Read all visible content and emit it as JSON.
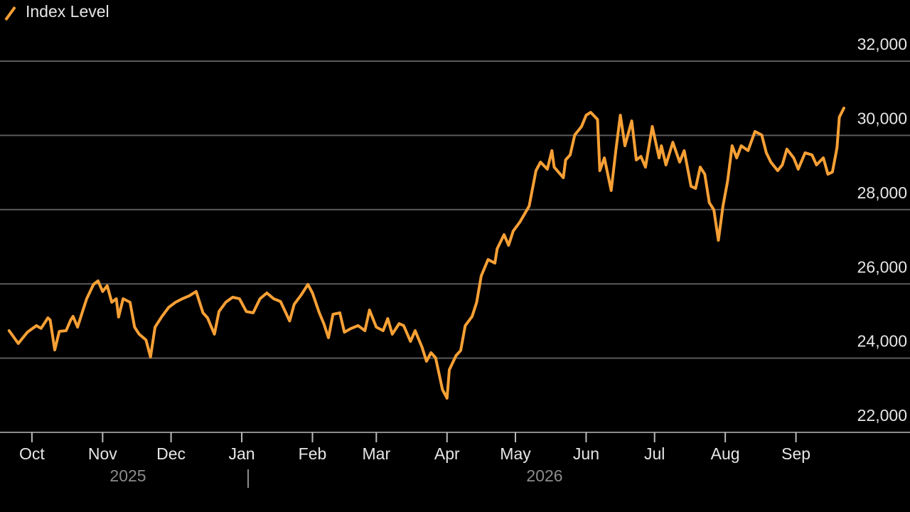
{
  "chart_data": {
    "type": "line",
    "series": [
      {
        "name": "Index Level",
        "color": "#f7a035",
        "values": [
          24740,
          24395,
          24700,
          24875,
          24800,
          25085,
          25025,
          24220,
          24720,
          24740,
          25025,
          25125,
          24835,
          25220,
          25600,
          25985,
          26080,
          25795,
          25950,
          25505,
          25600,
          25105,
          25600,
          25505,
          24835,
          24645,
          24490,
          24030,
          24835,
          25125,
          25370,
          25505,
          25600,
          25680,
          25795,
          25220,
          25085,
          24645,
          25255,
          25505,
          25640,
          25600,
          25255,
          25220,
          25600,
          25755,
          25600,
          25525,
          25000,
          25450,
          25700,
          25985,
          25755,
          25220,
          24930,
          24550,
          25180,
          25220,
          24700,
          24800,
          24875,
          24740,
          25295,
          24835,
          24740,
          25065,
          24645,
          24930,
          24875,
          24450,
          24740,
          24300,
          23915,
          24145,
          24010,
          23150,
          22920,
          23685,
          24070,
          24205,
          24875,
          25125,
          25505,
          26215,
          26655,
          26560,
          26945,
          27325,
          27040,
          27420,
          27670,
          28095,
          29050,
          29280,
          29090,
          29590,
          29145,
          28860,
          29340,
          29475,
          30010,
          30240,
          30545,
          30620,
          30430,
          29050,
          29395,
          28515,
          29590,
          30545,
          29720,
          30390,
          29340,
          29435,
          29145,
          30240,
          29395,
          29720,
          29205,
          29815,
          29280,
          29590,
          28630,
          28570,
          29145,
          28955,
          28190,
          27995,
          27175,
          28095,
          28765,
          29720,
          29395,
          29720,
          29590,
          30105,
          30010,
          29530,
          29280,
          29050,
          29205,
          29630,
          29395,
          29090,
          29530,
          29475,
          29205,
          29395,
          28955,
          29015,
          29665,
          30490,
          30735
        ]
      }
    ],
    "x": [
      -10,
      -6,
      -2,
      2,
      4,
      7,
      8,
      10,
      12,
      15,
      17,
      18,
      20,
      22,
      24,
      27,
      29,
      31,
      33,
      35,
      37,
      38,
      40,
      43,
      45,
      47,
      50,
      52,
      54,
      57,
      60,
      63,
      66,
      69,
      72,
      75,
      77,
      80,
      82,
      85,
      88,
      91,
      94,
      97,
      100,
      103,
      106,
      109,
      113,
      115,
      118,
      121,
      123,
      126,
      128,
      130,
      132,
      135,
      137,
      140,
      143,
      146,
      148,
      151,
      154,
      156,
      158,
      161,
      163,
      166,
      168,
      171,
      173,
      175,
      177,
      180,
      182,
      183,
      186,
      188,
      190,
      193,
      195,
      197,
      200,
      203,
      204,
      207,
      209,
      211,
      214,
      218,
      221,
      223,
      226,
      228,
      229,
      233,
      234,
      236,
      238,
      241,
      243,
      245,
      248,
      249,
      251,
      254,
      256,
      258,
      260,
      263,
      265,
      267,
      269,
      272,
      275,
      276,
      278,
      281,
      284,
      286,
      289,
      291,
      293,
      295,
      297,
      299,
      301,
      303,
      305,
      307,
      309,
      311,
      314,
      317,
      320,
      322,
      324,
      327,
      329,
      331,
      334,
      336,
      339,
      342,
      344,
      347,
      349,
      351,
      353,
      354,
      356
    ],
    "xlim": [
      -14,
      385
    ],
    "xticks": [
      {
        "value": 0,
        "label": "Oct"
      },
      {
        "value": 31,
        "label": "Nov"
      },
      {
        "value": 61,
        "label": "Dec"
      },
      {
        "value": 92,
        "label": "Jan"
      },
      {
        "value": 123,
        "label": "Feb"
      },
      {
        "value": 151,
        "label": "Mar"
      },
      {
        "value": 182,
        "label": "Apr"
      },
      {
        "value": 212,
        "label": "May"
      },
      {
        "value": 243,
        "label": "Jun"
      },
      {
        "value": 273,
        "label": "Jul"
      },
      {
        "value": 304,
        "label": "Aug"
      },
      {
        "value": 335,
        "label": "Sep"
      }
    ],
    "years": [
      "2025",
      "2026"
    ],
    "ylim": [
      22000,
      32000
    ],
    "yticks": [
      {
        "value": 22000,
        "label": "22,000"
      },
      {
        "value": 24000,
        "label": "24,000"
      },
      {
        "value": 26000,
        "label": "26,000"
      },
      {
        "value": 28000,
        "label": "28,000"
      },
      {
        "value": 30000,
        "label": "30,000"
      },
      {
        "value": 32000,
        "label": "32,000"
      }
    ],
    "grid": true
  }
}
